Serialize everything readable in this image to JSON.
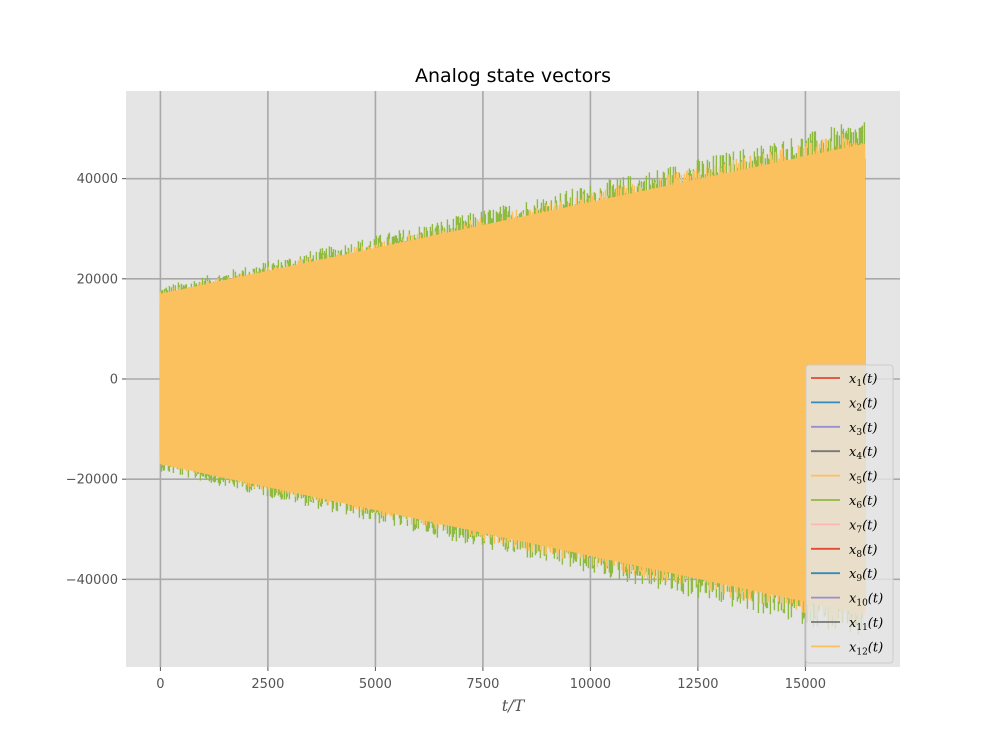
{
  "chart_data": {
    "type": "line",
    "title": "Analog state vectors",
    "xlabel": "t/T",
    "ylabel": "",
    "xlim": [
      -800,
      17200
    ],
    "ylim": [
      -57500,
      57500
    ],
    "xticks": [
      0,
      2500,
      5000,
      7500,
      10000,
      12500,
      15000
    ],
    "xtick_labels": [
      "0",
      "2500",
      "5000",
      "7500",
      "10000",
      "12500",
      "15000"
    ],
    "yticks": [
      -40000,
      -20000,
      0,
      20000,
      40000
    ],
    "ytick_labels": [
      "−40000",
      "−20000",
      "0",
      "20000",
      "40000"
    ],
    "grid": true,
    "legend_position": "lower-right",
    "background": "#e5e5e5",
    "x_range": [
      0,
      16384
    ],
    "series": [
      {
        "name": "x1(t)",
        "color": "#E24A33",
        "envelope": {
          "start": 15000,
          "end": 44000
        }
      },
      {
        "name": "x2(t)",
        "color": "#348ABD",
        "envelope": {
          "start": 15000,
          "end": 44000
        }
      },
      {
        "name": "x3(t)",
        "color": "#988ED5",
        "envelope": {
          "start": 15000,
          "end": 44000
        }
      },
      {
        "name": "x4(t)",
        "color": "#777777",
        "envelope": {
          "start": 15000,
          "end": 44000
        }
      },
      {
        "name": "x5(t)",
        "color": "#FBC15E",
        "envelope": {
          "start": 17500,
          "end": 50000
        }
      },
      {
        "name": "x6(t)",
        "color": "#8EBA42",
        "envelope": {
          "start": 18500,
          "end": 52000
        }
      },
      {
        "name": "x7(t)",
        "color": "#FFB5B8",
        "envelope": {
          "start": 15000,
          "end": 44000
        }
      },
      {
        "name": "x8(t)",
        "color": "#E24A33",
        "envelope": {
          "start": 15000,
          "end": 44000
        }
      },
      {
        "name": "x9(t)",
        "color": "#348ABD",
        "envelope": {
          "start": 15000,
          "end": 44000
        }
      },
      {
        "name": "x10(t)",
        "color": "#988ED5",
        "envelope": {
          "start": 15000,
          "end": 44000
        }
      },
      {
        "name": "x11(t)",
        "color": "#777777",
        "envelope": {
          "start": 15000,
          "end": 44000
        }
      },
      {
        "name": "x12(t)",
        "color": "#FBC15E",
        "envelope": {
          "start": 17000,
          "end": 47000
        }
      }
    ]
  }
}
